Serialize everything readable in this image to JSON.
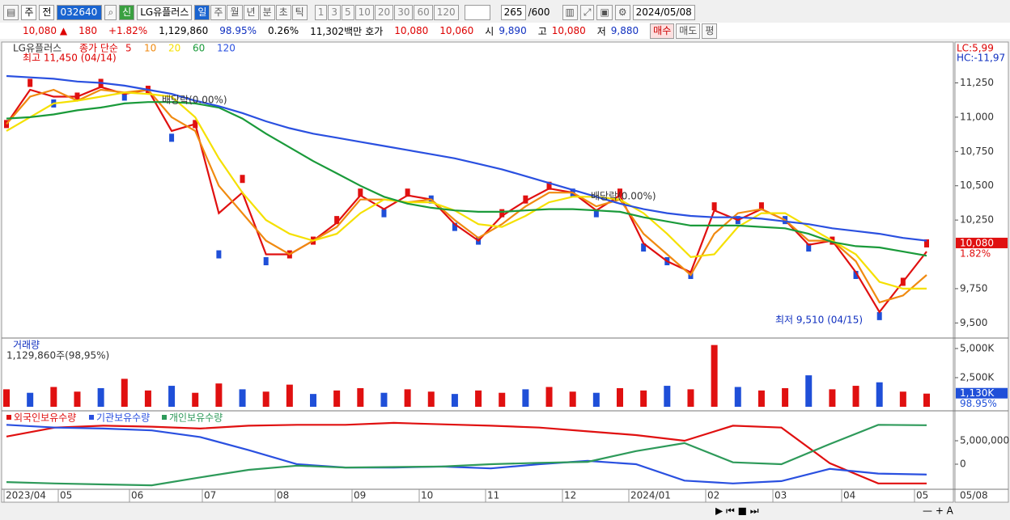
{
  "toolbar": {
    "period_type": "주",
    "prev": "전",
    "code": "032640",
    "badge": "신",
    "name": "LG유플러스",
    "periods": [
      "일",
      "주",
      "월",
      "년",
      "분",
      "초",
      "틱"
    ],
    "intervals": [
      "1",
      "3",
      "5",
      "10",
      "20",
      "30",
      "60",
      "120"
    ],
    "count": "265",
    "max": "/600",
    "date": "2024/05/08"
  },
  "info_bar": {
    "price": "10,080",
    "arrow": "▲",
    "change": "180",
    "rate": "+1.82%",
    "volume": "1,129,860",
    "volume_rate": "98.95%",
    "turnover": "0.26%",
    "amount": "11,302백만",
    "quote_label": "호가",
    "ask": "10,080",
    "bid": "10,060",
    "open_label": "시",
    "open": "9,890",
    "high_label": "고",
    "high": "10,080",
    "low_label": "저",
    "low": "9,880",
    "buttons": [
      "매수",
      "매도",
      "평"
    ]
  },
  "chart_data": [
    {
      "type": "line",
      "title": "LG유플러스",
      "legend_prefix": "종가 단순",
      "closes": [
        10950,
        11250,
        11100,
        11150,
        11250,
        11150,
        11200,
        10850,
        10950,
        10000,
        10550,
        9950,
        10000,
        10100,
        10250,
        10450,
        10300,
        10450,
        10400,
        10200,
        10100,
        10300,
        10400,
        10500,
        10450,
        10300,
        10450,
        10050,
        9950,
        9850,
        10350,
        10250,
        10350,
        10250,
        10050,
        10100,
        9850,
        9550,
        9800,
        10080
      ],
      "closes_color": "#555555",
      "series": [
        {
          "name": "5",
          "color": "#e01010",
          "values": [
            10950,
            11200,
            11150,
            11150,
            11220,
            11170,
            11200,
            10900,
            10950,
            10300,
            10450,
            10000,
            10000,
            10100,
            10230,
            10430,
            10330,
            10430,
            10400,
            10220,
            10100,
            10280,
            10390,
            10480,
            10450,
            10320,
            10430,
            10080,
            9950,
            9870,
            10320,
            10250,
            10330,
            10250,
            10070,
            10100,
            9870,
            9580,
            9800,
            10020
          ]
        },
        {
          "name": "10",
          "color": "#f08a10",
          "values": [
            10950,
            11150,
            11200,
            11120,
            11200,
            11180,
            11200,
            11000,
            10900,
            10500,
            10300,
            10100,
            10000,
            10100,
            10200,
            10400,
            10400,
            10380,
            10400,
            10250,
            10120,
            10220,
            10350,
            10450,
            10450,
            10350,
            10400,
            10150,
            10000,
            9850,
            10150,
            10300,
            10330,
            10250,
            10100,
            10100,
            9950,
            9650,
            9700,
            9850
          ]
        },
        {
          "name": "20",
          "color": "#f5e000",
          "values": [
            10900,
            11000,
            11100,
            11120,
            11150,
            11180,
            11170,
            11150,
            11000,
            10700,
            10450,
            10250,
            10150,
            10100,
            10150,
            10300,
            10400,
            10380,
            10380,
            10320,
            10220,
            10200,
            10280,
            10380,
            10420,
            10420,
            10400,
            10300,
            10150,
            9980,
            10000,
            10200,
            10300,
            10300,
            10200,
            10100,
            10000,
            9800,
            9750,
            9750
          ]
        },
        {
          "name": "60",
          "color": "#1a9a3a",
          "values": [
            10990,
            11000,
            11020,
            11050,
            11070,
            11100,
            11110,
            11110,
            11100,
            11070,
            10990,
            10880,
            10780,
            10680,
            10590,
            10500,
            10420,
            10370,
            10340,
            10320,
            10310,
            10310,
            10320,
            10330,
            10330,
            10320,
            10310,
            10270,
            10240,
            10210,
            10210,
            10210,
            10200,
            10190,
            10150,
            10090,
            10060,
            10050,
            10020,
            9990
          ]
        },
        {
          "name": "120",
          "color": "#2a50e0",
          "values": [
            11300,
            11290,
            11280,
            11260,
            11250,
            11230,
            11200,
            11170,
            11120,
            11080,
            11030,
            10970,
            10920,
            10880,
            10850,
            10820,
            10790,
            10760,
            10730,
            10700,
            10660,
            10620,
            10570,
            10520,
            10470,
            10420,
            10370,
            10330,
            10300,
            10280,
            10270,
            10270,
            10260,
            10240,
            10220,
            10190,
            10170,
            10150,
            10120,
            10100
          ]
        }
      ],
      "ylim": [
        9390,
        11530
      ],
      "yticks": [
        {
          "value": 9500,
          "label": "9,500"
        },
        {
          "value": 9750,
          "label": "9,750"
        },
        {
          "value": 10250,
          "label": "10,250"
        },
        {
          "value": 10500,
          "label": "10,500"
        },
        {
          "value": 10750,
          "label": "10,750"
        },
        {
          "value": 11000,
          "label": "11,000"
        },
        {
          "value": 11250,
          "label": "11,250"
        }
      ],
      "current": {
        "value": 10080,
        "label": "10,080"
      },
      "current_rate": "1.82%",
      "lc_label": "LC:5,99",
      "hc_label": "HC:-11,97",
      "annotations": [
        "최고 11,450 (04/14)",
        "배당락(0.00%)",
        "배당락(0.00%)",
        "최저 9,510 (04/15)"
      ]
    },
    {
      "type": "bar",
      "title": "거래량",
      "subtitle": "1,129,860주(98,95%)",
      "color": "#e01010",
      "down_color": "#1f4fd8",
      "values": [
        1500000,
        1200000,
        1700000,
        1300000,
        1600000,
        2400000,
        1400000,
        1800000,
        1200000,
        2000000,
        1500000,
        1300000,
        1900000,
        1100000,
        1400000,
        1600000,
        1200000,
        1500000,
        1300000,
        1100000,
        1400000,
        1200000,
        1500000,
        1700000,
        1300000,
        1200000,
        1600000,
        1400000,
        1800000,
        1500000,
        5300000,
        1700000,
        1400000,
        1600000,
        2700000,
        1500000,
        1800000,
        2100000,
        1300000,
        1130000
      ],
      "ylim": [
        0,
        5760000
      ],
      "yticks": [
        {
          "value": 2500000,
          "label": "2,500K"
        },
        {
          "value": 5000000,
          "label": "5,000K"
        }
      ],
      "current": {
        "value": 1130000,
        "label": "1,130K"
      },
      "current_rate": "98.95%"
    },
    {
      "type": "line",
      "series": [
        {
          "name": "외국인보유수량",
          "color": "#e01010",
          "values": [
            5900000,
            7800000,
            8200000,
            8000000,
            7600000,
            8200000,
            8400000,
            8400000,
            8800000,
            8500000,
            8200000,
            7800000,
            7000000,
            6200000,
            5000000,
            8200000,
            7800000,
            200000,
            -4100000,
            -4100000
          ]
        },
        {
          "name": "기관보유수량",
          "color": "#2a50e0",
          "values": [
            8400000,
            7800000,
            7600000,
            7200000,
            5800000,
            3000000,
            0,
            -700000,
            -700000,
            -500000,
            -900000,
            0,
            700000,
            0,
            -3500000,
            -4100000,
            -3600000,
            -1000000,
            -2000000,
            -2200000
          ]
        },
        {
          "name": "개인보유수량",
          "color": "#2e9a5a",
          "values": [
            -3800000,
            -4100000,
            -4300000,
            -4500000,
            -2800000,
            -1200000,
            -300000,
            -700000,
            -600000,
            -500000,
            0,
            300000,
            500000,
            2800000,
            4500000,
            400000,
            0,
            4300000,
            8400000,
            8300000
          ]
        }
      ],
      "ylim": [
        -5340000,
        11030000
      ],
      "yticks": [
        0,
        {
          "value": 5000000,
          "label": "5,000,000"
        }
      ],
      "x_labels": [
        "2023/04",
        "05",
        "06",
        "07",
        "08",
        "09",
        "10",
        "11",
        "12",
        "2024/01",
        "02",
        "03",
        "04",
        "05"
      ],
      "x_end_label": "05/08"
    }
  ]
}
